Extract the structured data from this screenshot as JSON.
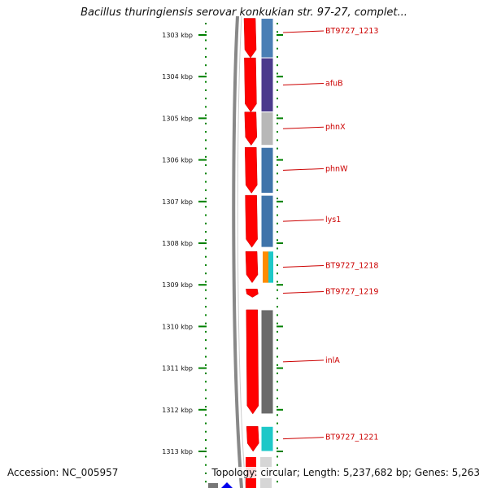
{
  "title": "Bacillus thuringiensis serovar konkukian str. 97-27, complet...",
  "footer": {
    "accession": "Accession: NC_005957",
    "summary": "Topology: circular; Length: 5,237,682 bp; Genes: 5,263"
  },
  "colors": {
    "forward_gene": "#ff0000",
    "label": "#cc0000",
    "tick": "#008000",
    "backbone": "#777777"
  },
  "scale": {
    "unit": "kbp",
    "ticks": [
      "1303 kbp",
      "1304 kbp",
      "1305 kbp",
      "1306 kbp",
      "1307 kbp",
      "1308 kbp",
      "1309 kbp",
      "1310 kbp",
      "1311 kbp",
      "1312 kbp",
      "1313 kbp"
    ]
  },
  "genes": [
    {
      "label": "BT9727_1213",
      "start_kbp": 1302.6,
      "end_kbp": 1303.55,
      "color": "#4a7fb5"
    },
    {
      "label": "afuB",
      "start_kbp": 1303.55,
      "end_kbp": 1304.85,
      "color": "#4b3a8c"
    },
    {
      "label": "phnX",
      "start_kbp": 1304.85,
      "end_kbp": 1305.65,
      "color": "#b8b8b8"
    },
    {
      "label": "phnW",
      "start_kbp": 1305.7,
      "end_kbp": 1306.8,
      "color": "#3f74aa"
    },
    {
      "label": "lys1",
      "start_kbp": 1306.85,
      "end_kbp": 1308.1,
      "color": "#3f74aa"
    },
    {
      "label": "BT9727_1218",
      "start_kbp": 1308.2,
      "end_kbp": 1308.95,
      "color": "#ff8c00"
    },
    {
      "label": "BT9727_1219",
      "start_kbp": 1309.1,
      "end_kbp": 1309.3,
      "color": "#ff0000"
    },
    {
      "label": "inlA",
      "start_kbp": 1309.6,
      "end_kbp": 1312.1,
      "color": "#6a6a6a"
    },
    {
      "label": "BT9727_1221",
      "start_kbp": 1312.4,
      "end_kbp": 1313.0,
      "color": "#1ec8c8"
    }
  ]
}
